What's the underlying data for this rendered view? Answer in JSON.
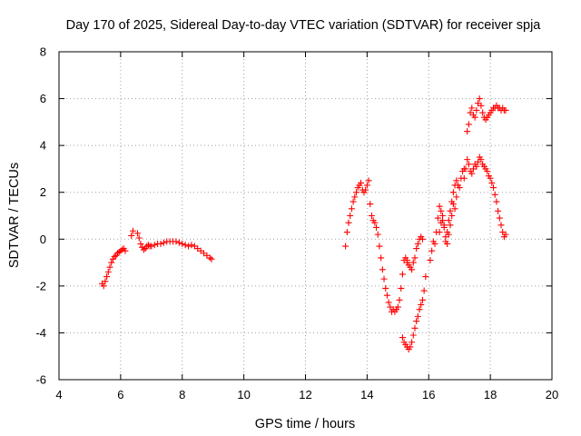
{
  "chart_data": {
    "type": "scatter",
    "title": "Day 170 of 2025, Sidereal Day-to-day VTEC variation (SDTVAR) for receiver spja",
    "xlabel": "GPS time / hours",
    "ylabel": "SDTVAR / TECUs",
    "xlim": [
      4,
      20
    ],
    "ylim": [
      -6,
      8
    ],
    "xticks": [
      "4",
      "6",
      "8",
      "10",
      "12",
      "14",
      "16",
      "18",
      "20"
    ],
    "yticks": [
      "-6",
      "-4",
      "-2",
      "0",
      "2",
      "4",
      "6",
      "8"
    ],
    "grid": true,
    "marker": "+",
    "color": "#ff0000",
    "series": [
      {
        "name": "segment-1",
        "x": [
          5.4,
          5.45,
          5.5,
          5.55,
          5.6,
          5.65,
          5.7,
          5.75,
          5.8,
          5.85,
          5.9,
          5.95,
          6.0,
          6.05,
          6.1,
          6.15,
          6.35,
          6.4,
          6.55,
          6.6,
          6.65,
          6.7,
          6.75,
          6.8,
          6.85,
          6.9,
          6.95,
          7.0,
          7.1,
          7.2,
          7.3,
          7.4,
          7.5,
          7.6,
          7.7,
          7.8,
          7.9,
          8.0,
          8.1,
          8.2,
          8.3,
          8.4,
          8.5,
          8.6,
          8.7,
          8.8,
          8.9,
          8.95
        ],
        "y": [
          -1.9,
          -2.0,
          -1.8,
          -1.6,
          -1.4,
          -1.2,
          -1.0,
          -0.85,
          -0.75,
          -0.7,
          -0.6,
          -0.55,
          -0.5,
          -0.45,
          -0.4,
          -0.5,
          0.15,
          0.35,
          0.25,
          0.05,
          -0.2,
          -0.35,
          -0.45,
          -0.4,
          -0.3,
          -0.25,
          -0.3,
          -0.3,
          -0.25,
          -0.2,
          -0.2,
          -0.15,
          -0.1,
          -0.1,
          -0.1,
          -0.1,
          -0.15,
          -0.2,
          -0.25,
          -0.3,
          -0.25,
          -0.3,
          -0.4,
          -0.5,
          -0.6,
          -0.7,
          -0.8,
          -0.85
        ]
      },
      {
        "name": "segment-2",
        "x": [
          13.3,
          13.35,
          13.4,
          13.45,
          13.5,
          13.55,
          13.6,
          13.65,
          13.7,
          13.75,
          13.8,
          13.85,
          13.9,
          13.95,
          14.0,
          14.05,
          14.1,
          14.15,
          14.2,
          14.25,
          14.3,
          14.35,
          14.4,
          14.45,
          14.5,
          14.55,
          14.6,
          14.65,
          14.7,
          14.75,
          14.8,
          14.85,
          14.9,
          14.95,
          15.0,
          15.05,
          15.1,
          15.15,
          15.2,
          15.25,
          15.3
        ],
        "y": [
          -0.3,
          0.3,
          0.7,
          1.0,
          1.3,
          1.6,
          1.8,
          2.0,
          2.2,
          2.3,
          2.4,
          2.1,
          2.0,
          2.1,
          2.3,
          2.5,
          1.5,
          1.0,
          0.8,
          0.7,
          0.5,
          0.2,
          -0.3,
          -0.8,
          -1.3,
          -1.7,
          -2.1,
          -2.4,
          -2.7,
          -2.9,
          -3.1,
          -3.0,
          -3.1,
          -3.0,
          -2.9,
          -2.6,
          -2.1,
          -1.5,
          -0.9,
          -0.8,
          -0.9
        ]
      },
      {
        "name": "segment-3",
        "x": [
          15.15,
          15.2,
          15.25,
          15.3,
          15.35,
          15.4,
          15.45,
          15.5,
          15.55,
          15.6,
          15.65,
          15.7,
          15.75,
          15.8,
          15.85,
          15.9
        ],
        "y": [
          -4.2,
          -4.4,
          -4.5,
          -4.6,
          -4.7,
          -4.6,
          -4.4,
          -4.1,
          -3.8,
          -3.5,
          -3.3,
          -3.0,
          -2.8,
          -2.6,
          -2.2,
          -1.6
        ]
      },
      {
        "name": "segment-4",
        "x": [
          15.3,
          15.35,
          15.4,
          15.45,
          15.5,
          15.55,
          15.6,
          15.65,
          15.7,
          15.75,
          15.8
        ],
        "y": [
          -1.0,
          -1.1,
          -1.2,
          -1.3,
          -1.0,
          -0.8,
          -0.4,
          -0.2,
          0.0,
          0.1,
          0.0
        ]
      },
      {
        "name": "segment-5",
        "x": [
          16.05,
          16.1,
          16.15,
          16.2,
          16.25,
          16.3,
          16.35,
          16.4,
          16.45,
          16.5,
          16.55,
          16.6,
          16.65,
          16.7,
          16.75,
          16.8,
          16.85,
          16.9,
          16.95,
          17.0,
          17.05,
          17.1,
          17.15
        ],
        "y": [
          -0.9,
          -0.5,
          -0.1,
          -0.2,
          0.3,
          0.9,
          1.4,
          1.2,
          0.8,
          0.5,
          0.1,
          0.3,
          0.8,
          1.2,
          1.6,
          2.0,
          2.3,
          2.5,
          2.3,
          2.2,
          2.6,
          2.9,
          3.0
        ]
      },
      {
        "name": "segment-6",
        "x": [
          16.35,
          16.4,
          16.45,
          16.5,
          16.55,
          16.6,
          16.65,
          16.7,
          16.75,
          16.8,
          16.85,
          16.9
        ],
        "y": [
          0.3,
          0.7,
          1.0,
          0.6,
          -0.1,
          -0.2,
          0.2,
          0.6,
          1.0,
          1.5,
          1.3,
          1.8
        ]
      },
      {
        "name": "segment-7",
        "x": [
          17.15,
          17.2,
          17.25,
          17.3,
          17.35,
          17.4,
          17.45,
          17.5,
          17.55,
          17.6,
          17.65,
          17.7,
          17.75,
          17.8,
          17.85,
          17.9,
          17.95,
          18.0,
          18.05,
          18.1,
          18.15,
          18.2,
          18.25,
          18.3,
          18.35,
          18.4,
          18.45,
          18.5
        ],
        "y": [
          2.6,
          3.0,
          3.4,
          3.2,
          2.9,
          2.8,
          3.0,
          3.2,
          3.1,
          3.3,
          3.5,
          3.4,
          3.2,
          3.1,
          3.0,
          2.9,
          2.7,
          2.6,
          2.4,
          2.2,
          1.9,
          1.6,
          1.2,
          0.9,
          0.6,
          0.3,
          0.1,
          0.2
        ]
      },
      {
        "name": "segment-8",
        "x": [
          17.25,
          17.3,
          17.35,
          17.4,
          17.45,
          17.5,
          17.55,
          17.6,
          17.65,
          17.7,
          17.75,
          17.8,
          17.85,
          17.9,
          17.95,
          18.0,
          18.05,
          18.1,
          18.15,
          18.2,
          18.25,
          18.3,
          18.35,
          18.4,
          18.45,
          18.5
        ],
        "y": [
          4.6,
          4.9,
          5.4,
          5.6,
          5.3,
          5.2,
          5.5,
          5.8,
          6.0,
          5.7,
          5.4,
          5.2,
          5.1,
          5.2,
          5.3,
          5.4,
          5.5,
          5.6,
          5.6,
          5.7,
          5.6,
          5.6,
          5.5,
          5.6,
          5.5,
          5.5
        ]
      }
    ]
  }
}
